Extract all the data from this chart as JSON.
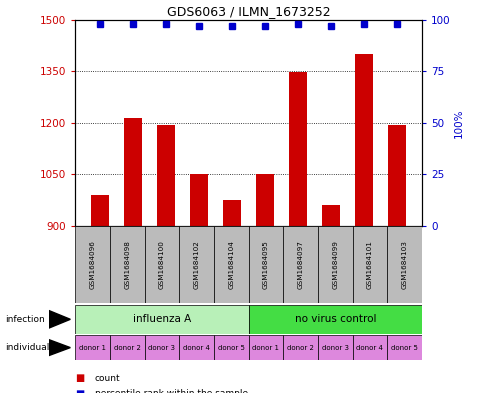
{
  "title": "GDS6063 / ILMN_1673252",
  "sample_ids": [
    "GSM1684096",
    "GSM1684098",
    "GSM1684100",
    "GSM1684102",
    "GSM1684104",
    "GSM1684095",
    "GSM1684097",
    "GSM1684099",
    "GSM1684101",
    "GSM1684103"
  ],
  "counts": [
    990,
    1215,
    1195,
    1052,
    975,
    1052,
    1348,
    960,
    1400,
    1193
  ],
  "percentile_ranks": [
    98,
    98,
    98,
    97,
    97,
    97,
    98,
    97,
    98,
    98
  ],
  "ylim_left": [
    900,
    1500
  ],
  "ylim_right": [
    0,
    100
  ],
  "yticks_left": [
    900,
    1050,
    1200,
    1350,
    1500
  ],
  "yticks_right": [
    0,
    25,
    50,
    75,
    100
  ],
  "infection_groups": [
    {
      "label": "influenza A",
      "start": 0,
      "end": 5,
      "color": "#b8f0b8"
    },
    {
      "label": "no virus control",
      "start": 5,
      "end": 10,
      "color": "#44dd44"
    }
  ],
  "individual_labels": [
    "donor 1",
    "donor 2",
    "donor 3",
    "donor 4",
    "donor 5",
    "donor 1",
    "donor 2",
    "donor 3",
    "donor 4",
    "donor 5"
  ],
  "individual_color": "#dd88dd",
  "bar_color": "#cc0000",
  "dot_color": "#0000cc",
  "grid_color": "#000000",
  "sample_label_color": "#000000",
  "sample_bg_color": "#bbbbbb",
  "legend_count_color": "#cc0000",
  "legend_dot_color": "#0000cc",
  "right_yaxis_color": "#0000cc",
  "left_yaxis_color": "#cc0000"
}
